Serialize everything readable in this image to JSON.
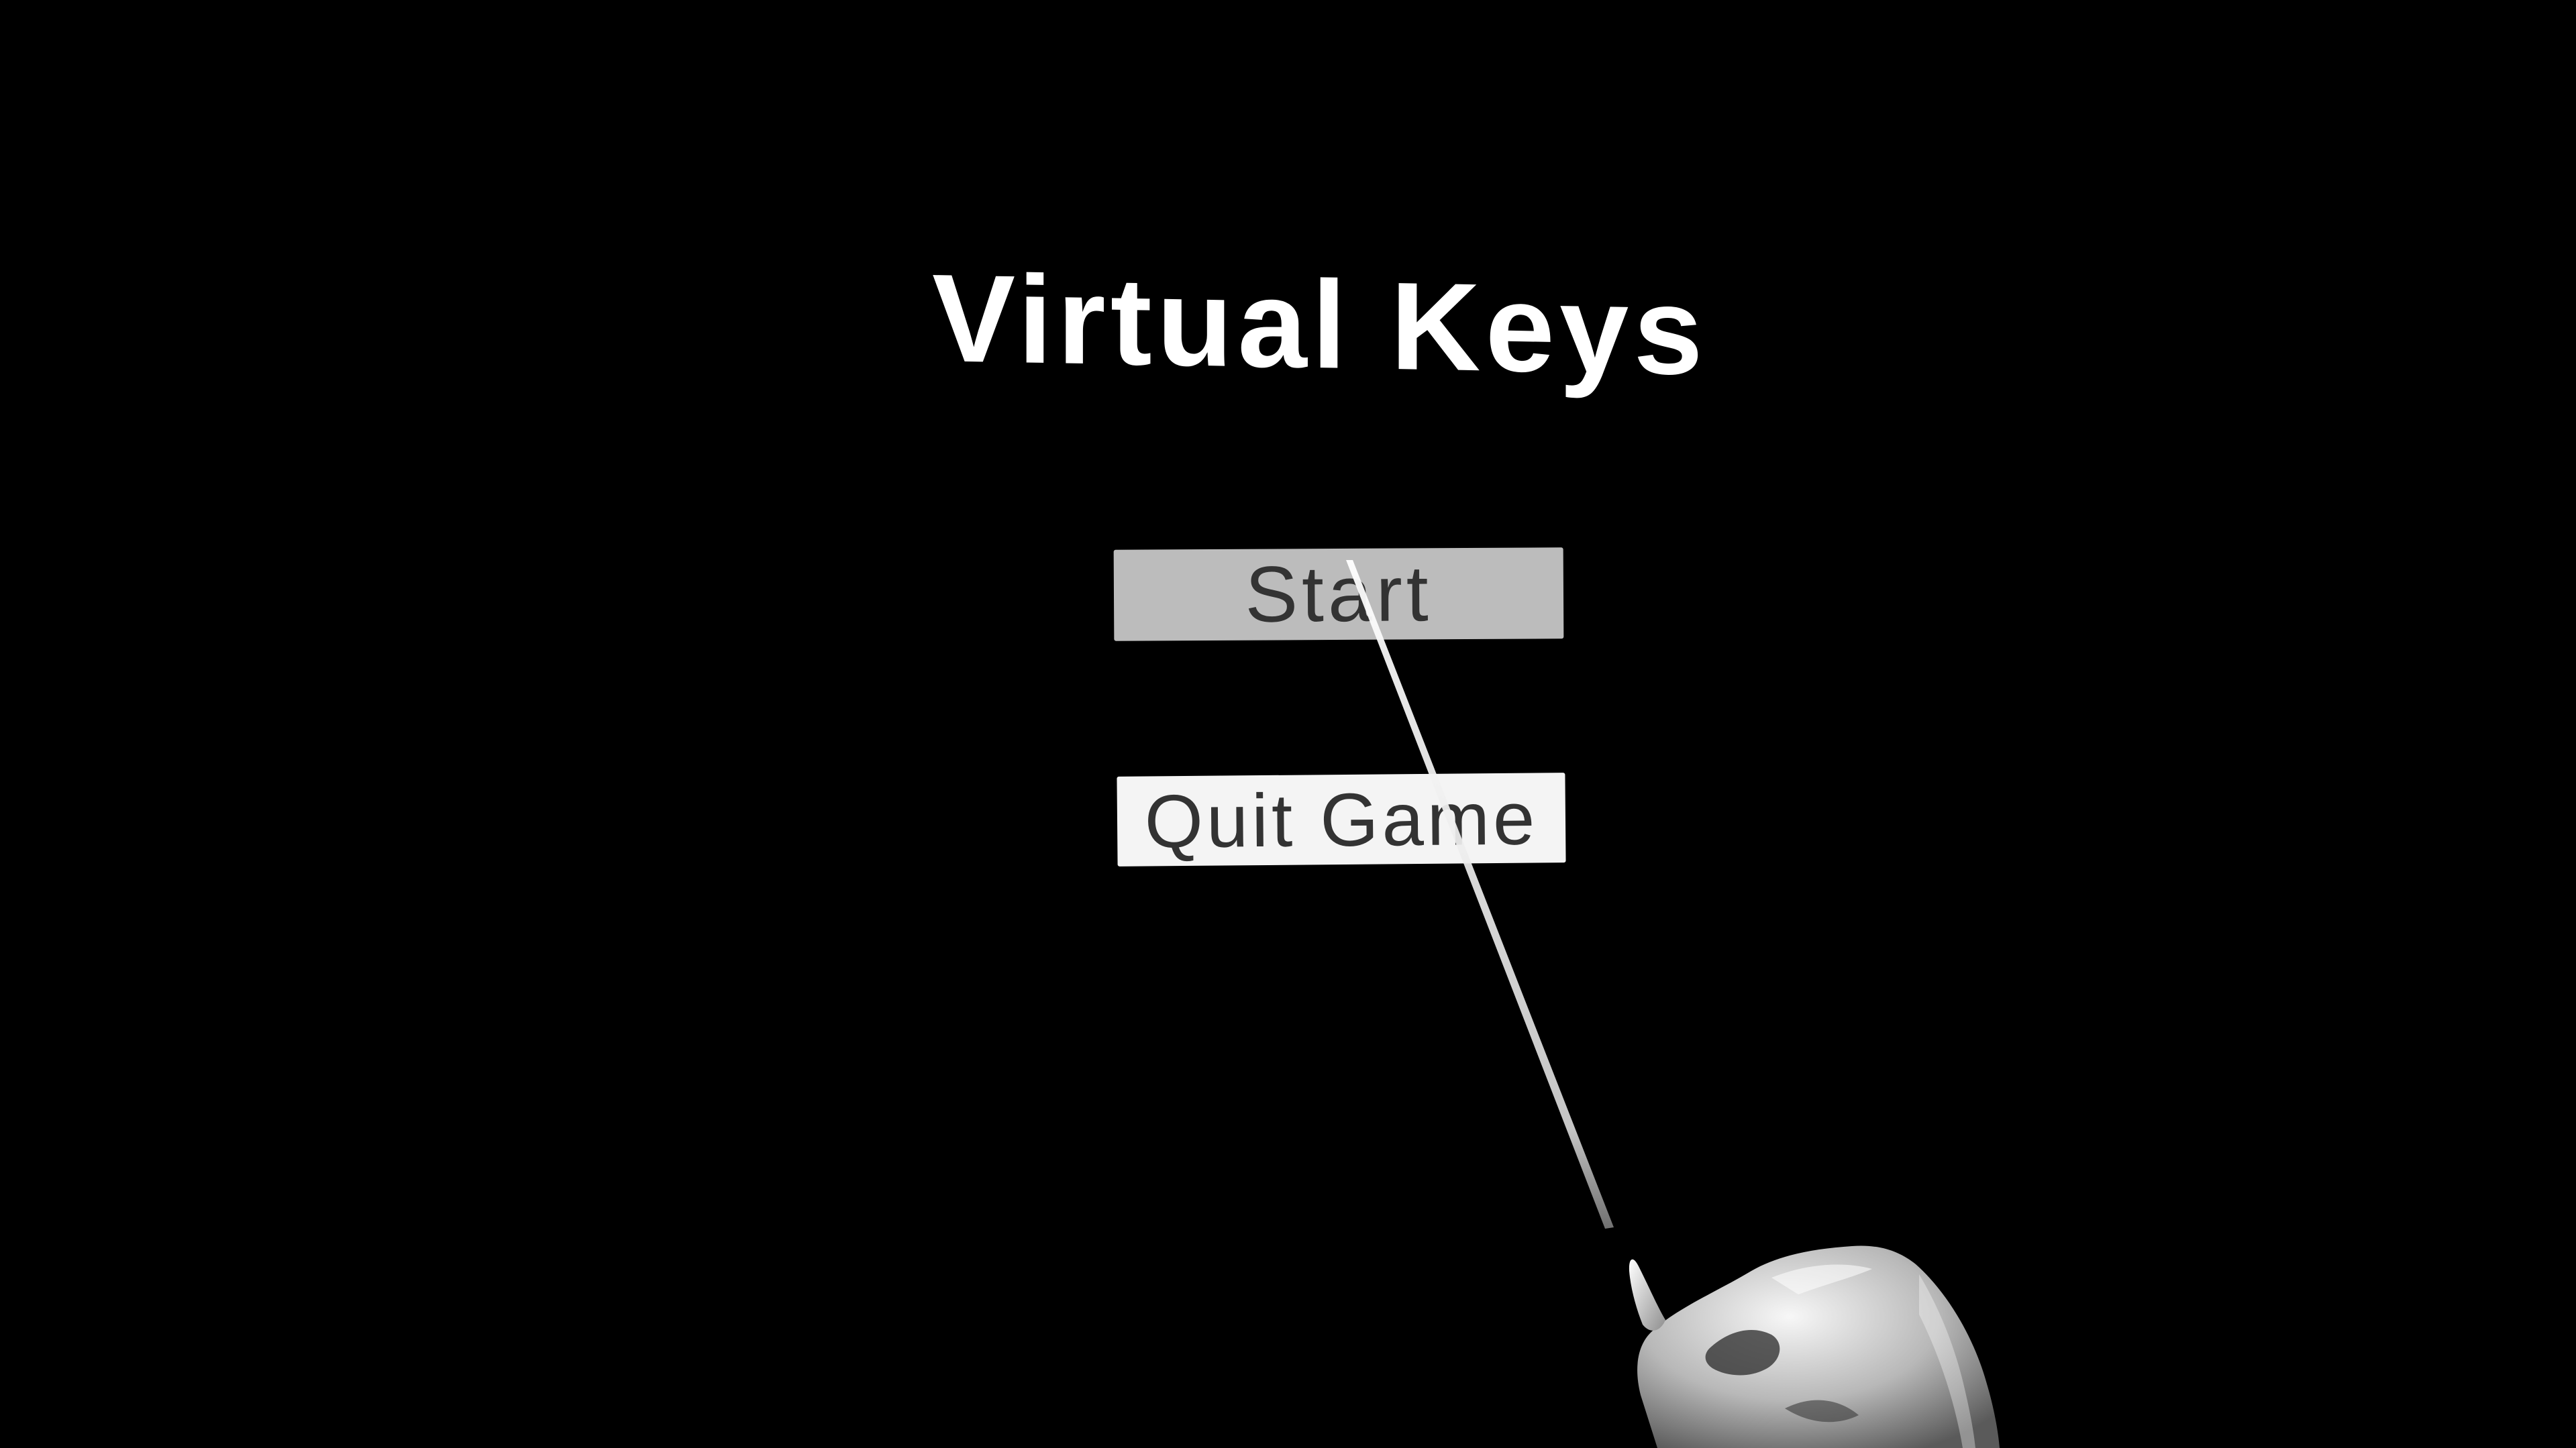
{
  "menu": {
    "title": "Virtual Keys",
    "start_label": "Start",
    "quit_label": "Quit Game"
  },
  "colors": {
    "background": "#000000",
    "title_text": "#ffffff",
    "start_button_fill": "#bcbcbc",
    "quit_button_fill": "#f4f4f4",
    "button_text": "#333333",
    "pointer_ray": "#e8e8e8",
    "hand": "#cfcfcf"
  },
  "icons": {
    "pointer": "laser-pointer-ray",
    "hand": "vr-hand-controller"
  }
}
